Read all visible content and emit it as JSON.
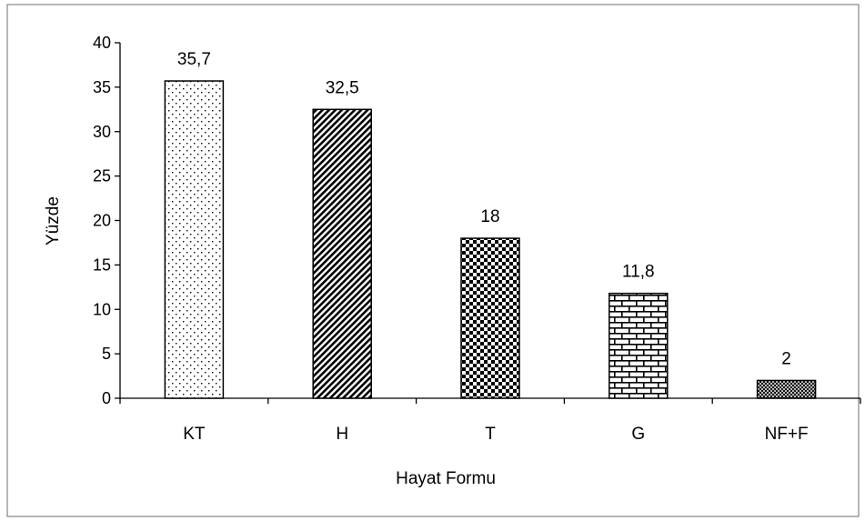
{
  "chart_data": {
    "type": "bar",
    "categories": [
      "KT",
      "H",
      "T",
      "G",
      "NF+F"
    ],
    "values": [
      35.7,
      32.5,
      18,
      11.8,
      2
    ],
    "data_labels": [
      "35,7",
      "32,5",
      "18",
      "11,8",
      "2"
    ],
    "xlabel": "Hayat Formu",
    "ylabel": "Yüzde",
    "ylim": [
      0,
      40
    ],
    "yticks": [
      0,
      5,
      10,
      15,
      20,
      25,
      30,
      35,
      40
    ],
    "grid": false,
    "legend": "none",
    "bar_fill_patterns": [
      "dots",
      "diagonal-lines",
      "checker",
      "brick",
      "crosshatch-fine"
    ],
    "colors": {
      "bar_stroke": "#000000",
      "axis": "#000000",
      "frame": "#6b6b6b",
      "background": "#ffffff"
    }
  }
}
